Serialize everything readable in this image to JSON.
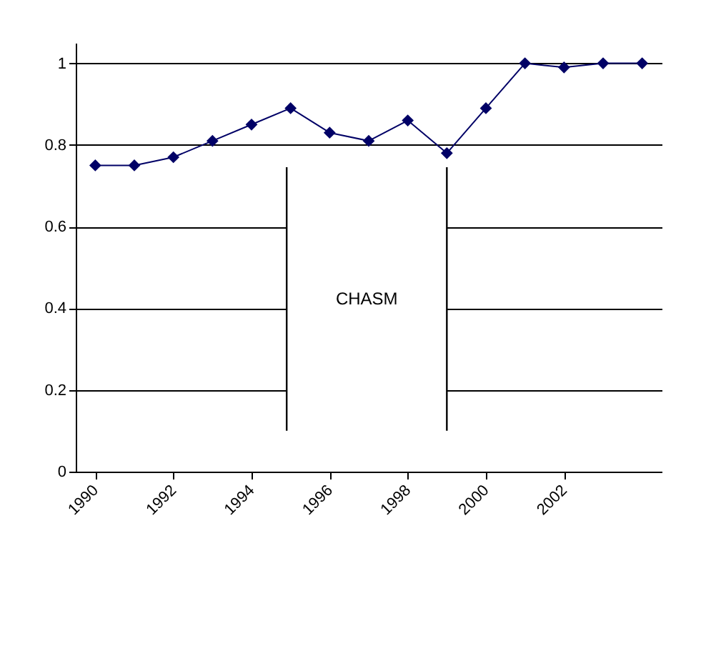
{
  "chart_data": {
    "type": "line",
    "x": [
      1990,
      1991,
      1992,
      1993,
      1994,
      1995,
      1996,
      1997,
      1998,
      1999,
      2000,
      2001,
      2002,
      2003,
      2004
    ],
    "series": [
      {
        "color": "#000066",
        "values": [
          0.75,
          0.75,
          0.77,
          0.81,
          0.85,
          0.89,
          0.83,
          0.81,
          0.86,
          0.78,
          0.89,
          1.0,
          0.99,
          1.0,
          1.0
        ]
      }
    ],
    "xlim": [
      1989.5,
      2004.5
    ],
    "xticks": [
      1990,
      1992,
      1994,
      1996,
      1998,
      2000,
      2002
    ],
    "ylim": [
      0,
      1.05
    ],
    "yticks": [
      0,
      0.2,
      0.4,
      0.6,
      0.8,
      1
    ],
    "ref_lines": [
      {
        "axis": "x",
        "value": 1994.9,
        "color": "#000000"
      },
      {
        "axis": "x",
        "value": 1999,
        "color": "#000000"
      }
    ],
    "bands": [
      {
        "axis": "x",
        "from": 1994.9,
        "to": 1999,
        "label": "CHASM",
        "color": "#ffffff"
      }
    ],
    "grid": "y",
    "marker": "diamond",
    "line_style": "solid"
  }
}
